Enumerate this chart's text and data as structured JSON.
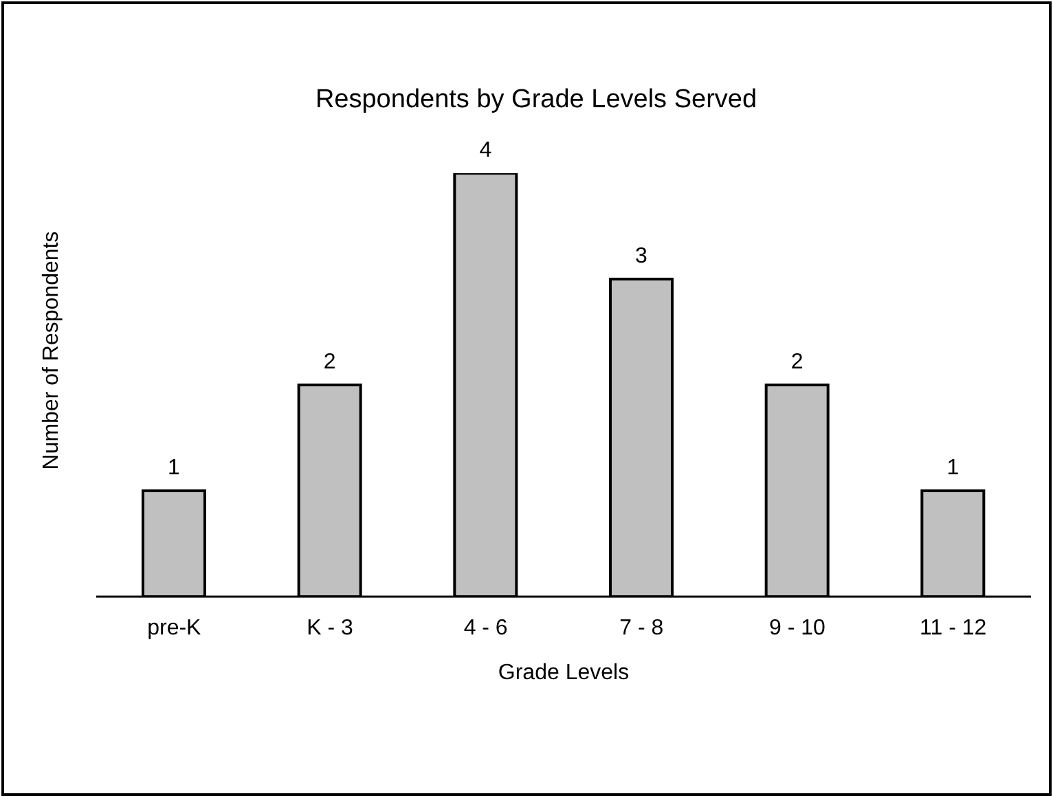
{
  "chart_data": {
    "type": "bar",
    "title": "Respondents by Grade Levels Served",
    "xlabel": "Grade Levels",
    "ylabel": "Number of Respondents",
    "categories": [
      "pre-K",
      "K - 3",
      "4 - 6",
      "7 - 8",
      "9 - 10",
      "11 - 12"
    ],
    "values": [
      1,
      2,
      4,
      3,
      2,
      1
    ],
    "color": "#c0c0c0",
    "data_labels": true,
    "grid": false,
    "legend": false
  }
}
